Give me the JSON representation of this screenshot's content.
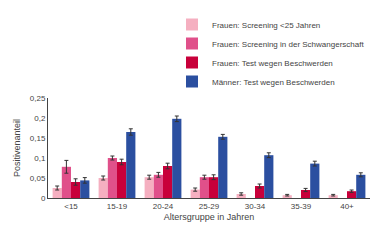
{
  "chart_data": {
    "type": "bar",
    "categories": [
      "<15",
      "15-19",
      "20-24",
      "25-29",
      "30-34",
      "35-39",
      "40+"
    ],
    "series": [
      {
        "name": "Frauen: Screening <25 Jahren",
        "color": "#f5afc0",
        "values": [
          0.025,
          0.05,
          0.052,
          0.021,
          0.01,
          0.007,
          0.007
        ],
        "errors": [
          0.005,
          0.005,
          0.005,
          0.004,
          0.003,
          0.002,
          0.002
        ]
      },
      {
        "name": "Frauen: Screening in der Schwangerschaft",
        "color": "#e0508a",
        "values": [
          0.078,
          0.1,
          0.058,
          0.052,
          null,
          null,
          null
        ],
        "errors": [
          0.016,
          0.005,
          0.006,
          0.005,
          null,
          null,
          null
        ]
      },
      {
        "name": "Frauen: Test wegen Beschwerden",
        "color": "#c8003a",
        "values": [
          0.04,
          0.09,
          0.08,
          0.052,
          0.03,
          0.02,
          0.017
        ],
        "errors": [
          0.008,
          0.007,
          0.007,
          0.006,
          0.005,
          0.004,
          0.003
        ]
      },
      {
        "name": "Männer: Test wegen Beschwerden",
        "color": "#2b4fa0",
        "values": [
          0.044,
          0.165,
          0.198,
          0.153,
          0.107,
          0.086,
          0.058
        ],
        "errors": [
          0.007,
          0.008,
          0.007,
          0.006,
          0.006,
          0.006,
          0.005
        ]
      }
    ],
    "xlabel": "Altersgruppe in Jahren",
    "ylabel": "Positivenanteil",
    "ylim": [
      0,
      0.25
    ],
    "yticks": [
      0,
      {
        "value": 0.05,
        "label": "0,05"
      },
      {
        "value": 0.1,
        "label": "0,1"
      },
      {
        "value": 0.15,
        "label": "0,15"
      },
      {
        "value": 0.2,
        "label": "0,2"
      },
      {
        "value": 0.25,
        "label": "0,25"
      }
    ],
    "grid": false,
    "legend": "upper right"
  }
}
